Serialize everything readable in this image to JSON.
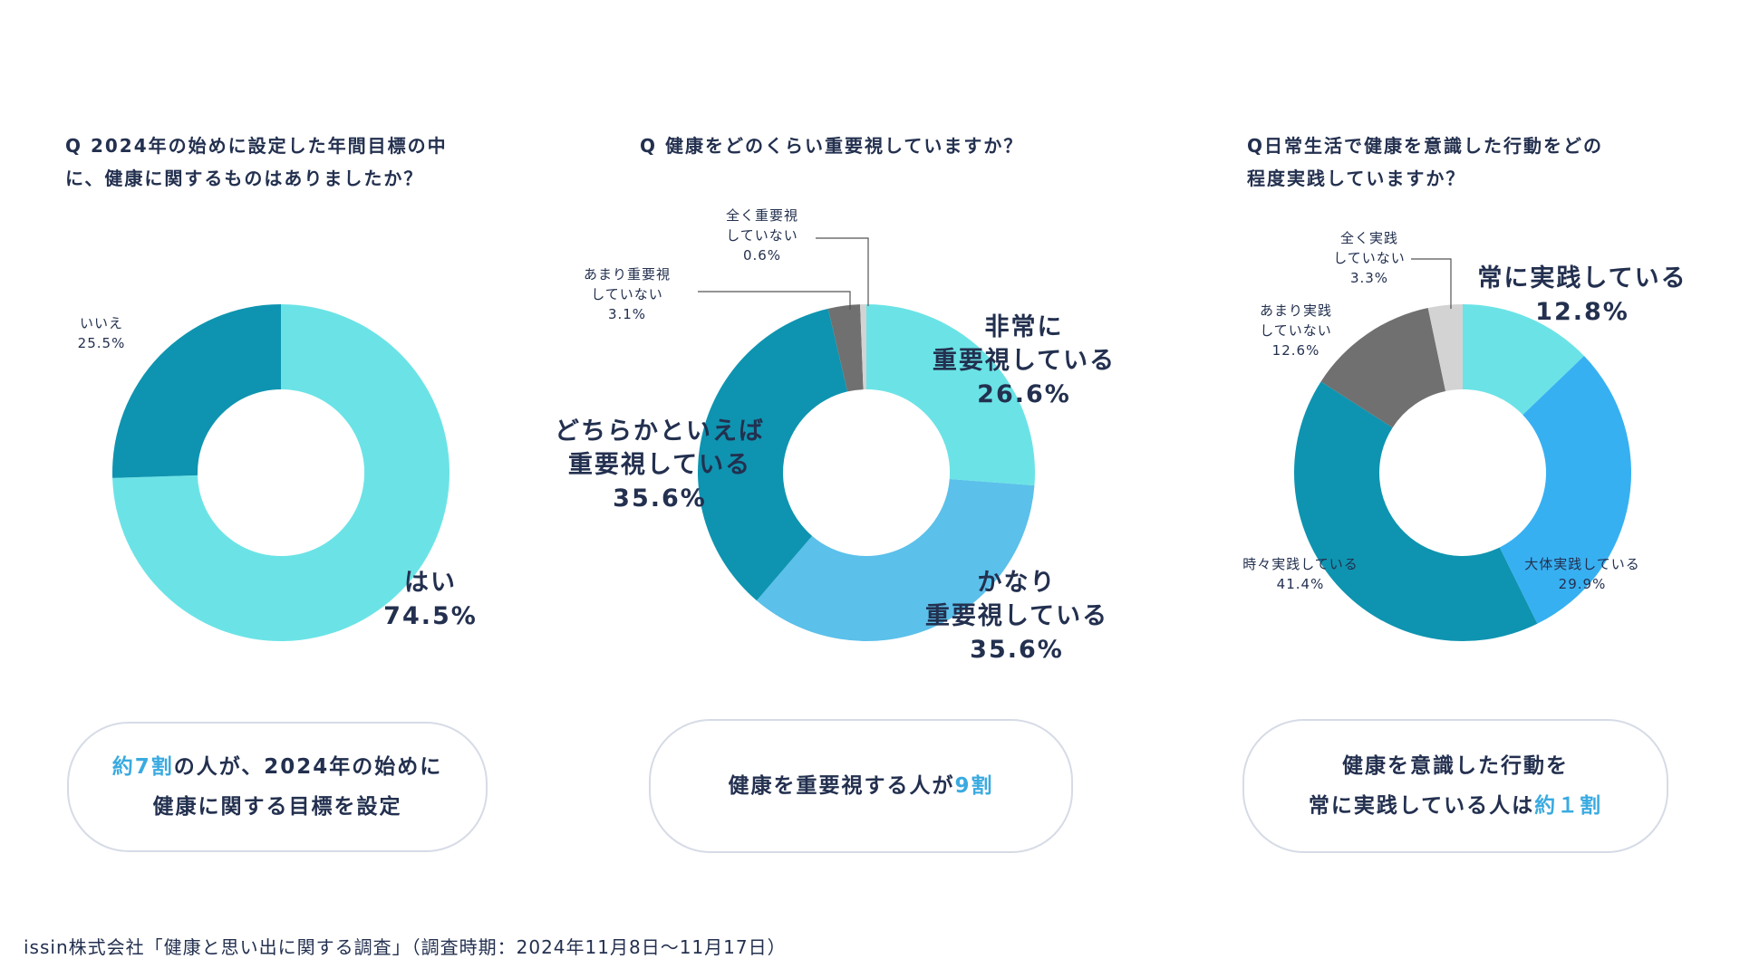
{
  "panels": [
    {
      "question_lines": [
        "Q 2024年の始めに設定した年間目標の中",
        "に、健康に関するものはありましたか？"
      ],
      "callout": {
        "line1": {
          "highlight": "約7割",
          "text": "の人が、2024年の始めに"
        },
        "line2": {
          "text": "健康に関する目標を設定"
        }
      }
    },
    {
      "question_lines": [
        "Q 健康をどのくらい重要視していますか？"
      ],
      "callout": {
        "line1": {
          "text": "健康を重要視する人が",
          "highlight": "9割"
        }
      }
    },
    {
      "question_lines": [
        "Q日常生活で健康を意識した行動をどの",
        "程度実践していますか？"
      ],
      "callout": {
        "line1": {
          "text": "健康を意識した行動を"
        },
        "line2": {
          "text": "常に実践している人は",
          "highlight": "約１割"
        }
      }
    }
  ],
  "chart_data": [
    {
      "type": "pie",
      "donut": true,
      "slices": [
        {
          "label_lines": [
            "はい"
          ],
          "value": 74.5,
          "value_text": "74.5%",
          "color": "#6be3e6"
        },
        {
          "label_lines": [
            "いいえ"
          ],
          "value": 25.5,
          "value_text": "25.5%",
          "color": "#0e94b0"
        }
      ]
    },
    {
      "type": "pie",
      "donut": true,
      "slices": [
        {
          "label_lines": [
            "非常に",
            "重要視している"
          ],
          "value": 26.6,
          "value_text": "26.6%",
          "color": "#6be3e6"
        },
        {
          "label_lines": [
            "かなり",
            "重要視している"
          ],
          "value": 35.6,
          "value_text": "35.6%",
          "color": "#5bc0ea"
        },
        {
          "label_lines": [
            "どちらかといえば",
            "重要視している"
          ],
          "value": 35.6,
          "value_text": "35.6%",
          "color": "#0e94b0"
        },
        {
          "label_lines": [
            "あまり重要視",
            "していない"
          ],
          "value": 3.1,
          "value_text": "3.1%",
          "color": "#707070"
        },
        {
          "label_lines": [
            "全く重要視",
            "していない"
          ],
          "value": 0.6,
          "value_text": "0.6%",
          "color": "#d3d3d3"
        }
      ]
    },
    {
      "type": "pie",
      "donut": true,
      "slices": [
        {
          "label_lines": [
            "常に実践している"
          ],
          "value": 12.8,
          "value_text": "12.8%",
          "color": "#6be3e6"
        },
        {
          "label_lines": [
            "大体実践している"
          ],
          "value": 29.9,
          "value_text": "29.9%",
          "color": "#37b0f2"
        },
        {
          "label_lines": [
            "時々実践している"
          ],
          "value": 41.4,
          "value_text": "41.4%",
          "color": "#0e94b0"
        },
        {
          "label_lines": [
            "あまり実践",
            "していない"
          ],
          "value": 12.6,
          "value_text": "12.6%",
          "color": "#707070"
        },
        {
          "label_lines": [
            "全く実践",
            "していない"
          ],
          "value": 3.3,
          "value_text": "3.3%",
          "color": "#d3d3d3"
        }
      ]
    }
  ],
  "footer": {
    "text": "issin株式会社「健康と思い出に関する調査」（調査時期：2024年11月8日〜11月17日）"
  }
}
